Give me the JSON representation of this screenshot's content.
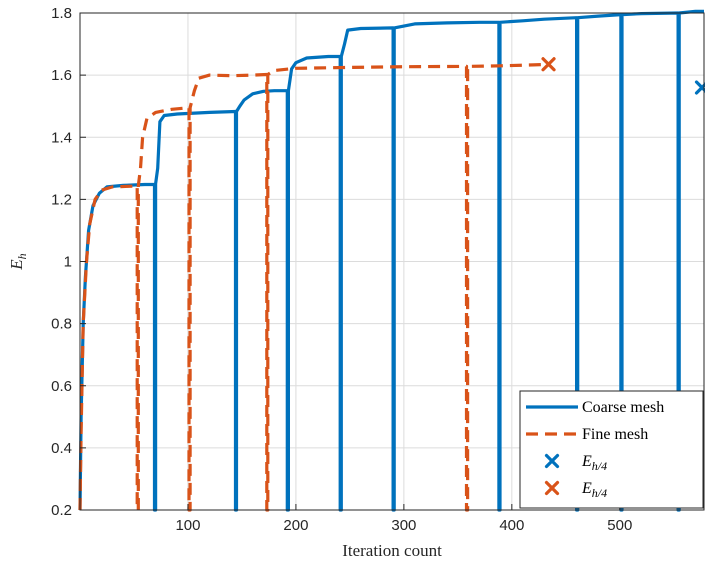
{
  "chart_data": {
    "type": "line",
    "xlabel": "Iteration count",
    "ylabel": "E",
    "ylabel_subscript": "h",
    "xlim": [
      0,
      578
    ],
    "ylim": [
      0.2,
      1.8
    ],
    "xticks": [
      100,
      200,
      300,
      400,
      500
    ],
    "yticks": [
      0.2,
      0.4,
      0.6,
      0.8,
      1,
      1.2,
      1.4,
      1.6,
      1.8
    ],
    "grid": true,
    "legend_placement": "bottom-right",
    "colors": {
      "coarse": "#0072BD",
      "fine": "#D95319",
      "grid": "#dcdcdc",
      "axes": "#262626"
    },
    "series": [
      {
        "name": "Coarse mesh",
        "style": "solid",
        "points": [
          [
            0,
            0.2
          ],
          [
            1,
            0.5
          ],
          [
            3,
            0.8
          ],
          [
            5,
            0.95
          ],
          [
            8,
            1.1
          ],
          [
            12,
            1.18
          ],
          [
            18,
            1.22
          ],
          [
            25,
            1.24
          ],
          [
            40,
            1.245
          ],
          [
            60,
            1.248
          ],
          [
            69,
            1.248
          ],
          [
            69,
            0.2
          ],
          [
            70,
            0.2
          ],
          [
            70,
            1.25
          ],
          [
            72,
            1.3
          ],
          [
            74,
            1.45
          ],
          [
            78,
            1.47
          ],
          [
            90,
            1.475
          ],
          [
            120,
            1.48
          ],
          [
            144,
            1.483
          ],
          [
            144,
            0.2
          ],
          [
            145,
            0.2
          ],
          [
            145,
            1.483
          ],
          [
            148,
            1.5
          ],
          [
            152,
            1.52
          ],
          [
            160,
            1.54
          ],
          [
            170,
            1.548
          ],
          [
            180,
            1.55
          ],
          [
            192,
            1.55
          ],
          [
            192,
            0.2
          ],
          [
            193,
            0.2
          ],
          [
            193,
            1.55
          ],
          [
            196,
            1.62
          ],
          [
            200,
            1.64
          ],
          [
            210,
            1.655
          ],
          [
            230,
            1.66
          ],
          [
            241,
            1.66
          ],
          [
            241,
            0.2
          ],
          [
            242,
            0.2
          ],
          [
            242,
            1.66
          ],
          [
            245,
            1.7
          ],
          [
            248,
            1.745
          ],
          [
            260,
            1.75
          ],
          [
            290,
            1.752
          ],
          [
            290,
            0.2
          ],
          [
            291,
            0.2
          ],
          [
            291,
            1.752
          ],
          [
            310,
            1.765
          ],
          [
            340,
            1.768
          ],
          [
            370,
            1.77
          ],
          [
            388,
            1.77
          ],
          [
            388,
            0.2
          ],
          [
            389,
            0.2
          ],
          [
            389,
            1.77
          ],
          [
            410,
            1.775
          ],
          [
            430,
            1.78
          ],
          [
            460,
            1.785
          ],
          [
            460,
            0.2
          ],
          [
            461,
            0.2
          ],
          [
            461,
            1.785
          ],
          [
            480,
            1.79
          ],
          [
            501,
            1.795
          ],
          [
            501,
            0.2
          ],
          [
            502,
            0.2
          ],
          [
            502,
            1.795
          ],
          [
            520,
            1.798
          ],
          [
            554,
            1.8
          ],
          [
            554,
            0.2
          ],
          [
            555,
            0.2
          ],
          [
            555,
            1.8
          ],
          [
            570,
            1.805
          ],
          [
            578,
            1.805
          ]
        ]
      },
      {
        "name": "Fine mesh",
        "style": "dashed",
        "points": [
          [
            0,
            0.2
          ],
          [
            1,
            0.45
          ],
          [
            3,
            0.8
          ],
          [
            6,
            1.0
          ],
          [
            9,
            1.12
          ],
          [
            14,
            1.2
          ],
          [
            20,
            1.23
          ],
          [
            30,
            1.24
          ],
          [
            45,
            1.242
          ],
          [
            53,
            1.243
          ],
          [
            53,
            0.2
          ],
          [
            54,
            0.2
          ],
          [
            54,
            1.243
          ],
          [
            56,
            1.3
          ],
          [
            58,
            1.4
          ],
          [
            62,
            1.46
          ],
          [
            70,
            1.48
          ],
          [
            85,
            1.49
          ],
          [
            101,
            1.495
          ],
          [
            101,
            0.2
          ],
          [
            102,
            0.2
          ],
          [
            102,
            1.495
          ],
          [
            106,
            1.55
          ],
          [
            110,
            1.59
          ],
          [
            120,
            1.6
          ],
          [
            140,
            1.598
          ],
          [
            160,
            1.6
          ],
          [
            173,
            1.602
          ],
          [
            173,
            0.2
          ],
          [
            174,
            0.2
          ],
          [
            174,
            1.602
          ],
          [
            180,
            1.615
          ],
          [
            200,
            1.622
          ],
          [
            250,
            1.625
          ],
          [
            300,
            1.627
          ],
          [
            358,
            1.628
          ],
          [
            358,
            0.2
          ],
          [
            359,
            0.2
          ],
          [
            359,
            1.628
          ],
          [
            390,
            1.63
          ],
          [
            420,
            1.633
          ],
          [
            434,
            1.635
          ]
        ]
      }
    ],
    "markers": [
      {
        "name": "E_{h/4}",
        "color": "#0072BD",
        "x": 578,
        "y": 1.56
      },
      {
        "name": "E_{h/4}",
        "color": "#D95319",
        "x": 434,
        "y": 1.635
      }
    ],
    "legend": {
      "entries": [
        {
          "label": "Coarse mesh",
          "kind": "solid",
          "color": "#0072BD"
        },
        {
          "label": "Fine mesh",
          "kind": "dashed",
          "color": "#D95319"
        },
        {
          "label": "E",
          "sub": "h/4",
          "kind": "marker",
          "color": "#0072BD"
        },
        {
          "label": "E",
          "sub": "h/4",
          "kind": "marker",
          "color": "#D95319"
        }
      ]
    }
  }
}
